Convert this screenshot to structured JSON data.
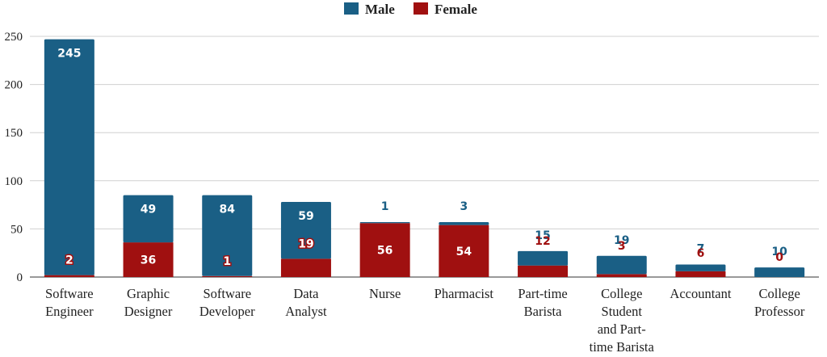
{
  "chart_data": {
    "type": "bar",
    "stacked": true,
    "categories": [
      "Software Engineer",
      "Graphic Designer",
      "Software Developer",
      "Data Analyst",
      "Nurse",
      "Pharmacist",
      "Part-time Barista",
      "College Student and Part-time Barista",
      "Accountant",
      "College Professor"
    ],
    "series": [
      {
        "name": "Male",
        "values": [
          245,
          49,
          84,
          59,
          1,
          3,
          15,
          19,
          7,
          10
        ]
      },
      {
        "name": "Female",
        "values": [
          2,
          36,
          1,
          19,
          56,
          54,
          12,
          3,
          6,
          0
        ]
      }
    ],
    "title": "",
    "xlabel": "",
    "ylabel": "",
    "ylim": [
      0,
      250
    ],
    "yticks": [
      0,
      50,
      100,
      150,
      200,
      250
    ],
    "grid": true,
    "legend_position": "top",
    "colors": {
      "Male": "#1a5f85",
      "Female": "#a01010"
    }
  }
}
